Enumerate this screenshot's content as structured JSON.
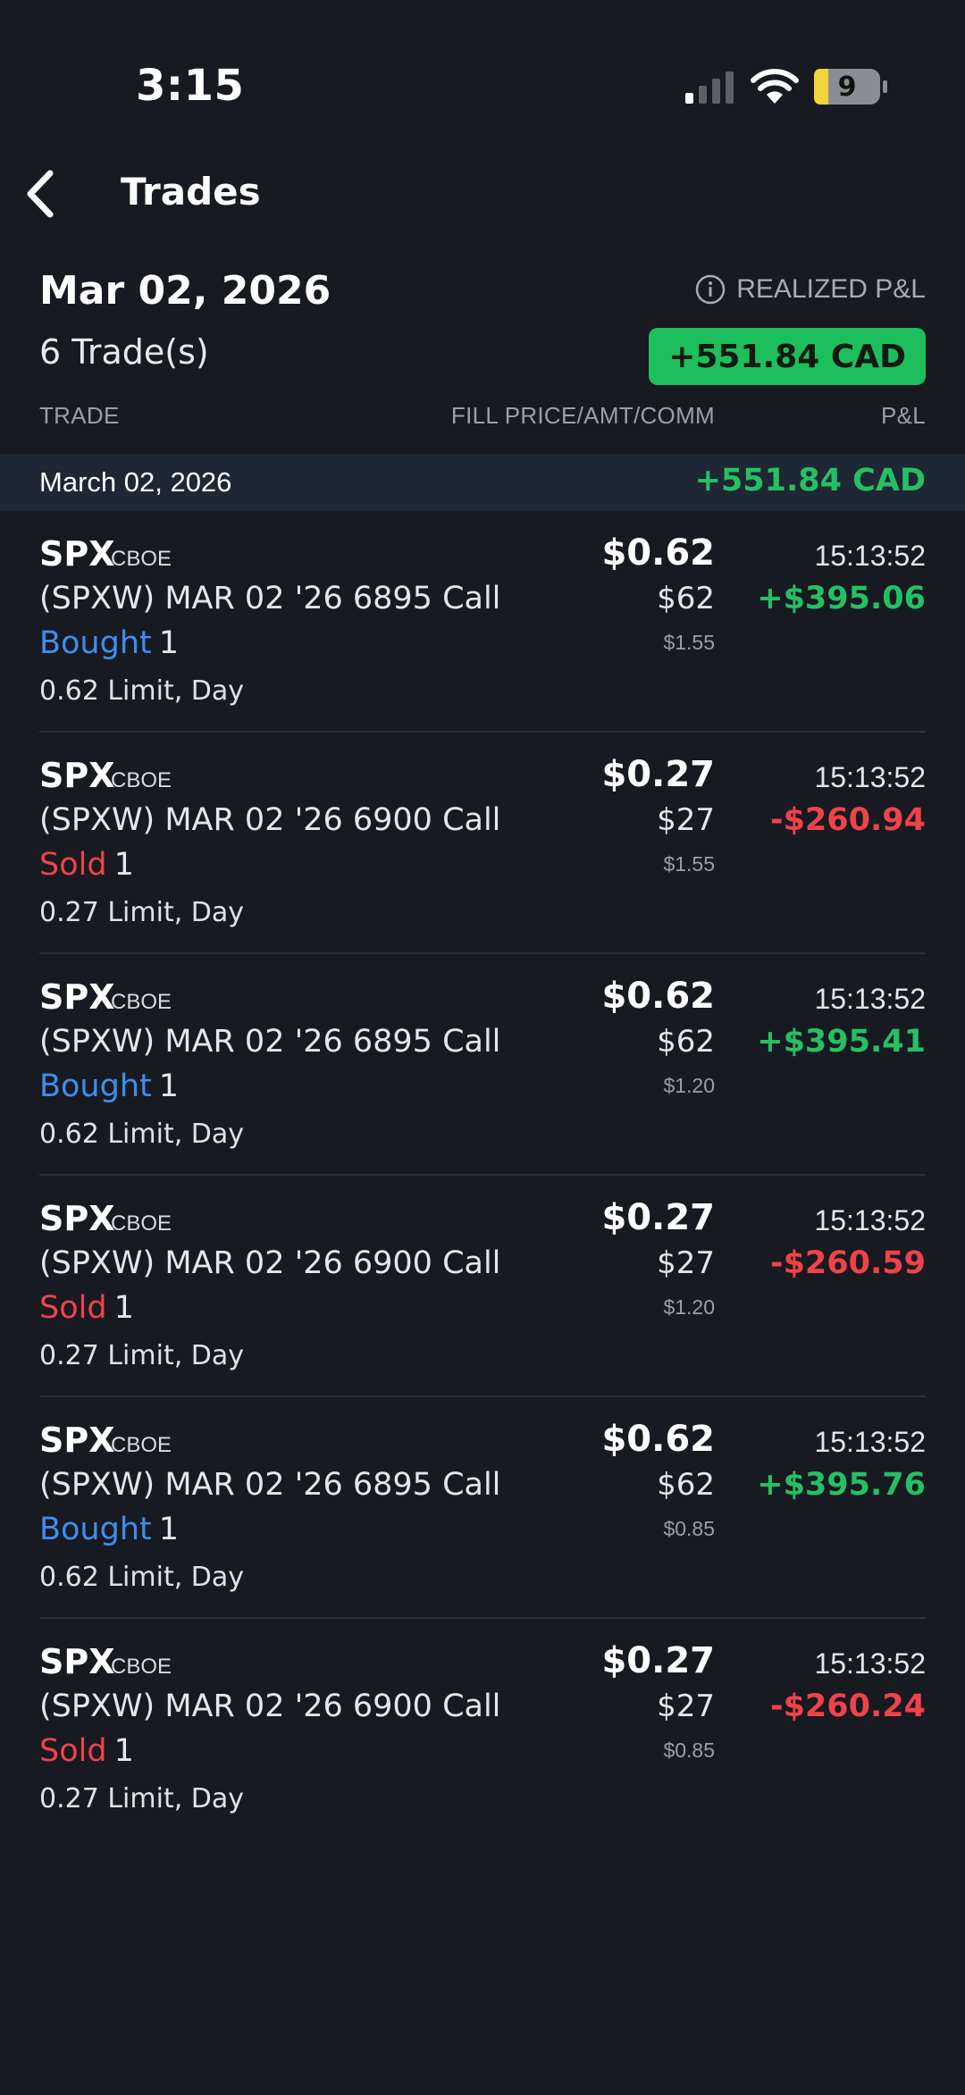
{
  "status_bar": {
    "time": "3:15",
    "battery_level": "9",
    "icons": [
      "signal-icon",
      "wifi-icon",
      "battery-icon"
    ]
  },
  "nav": {
    "title": "Trades",
    "back_icon": "chevron-left-icon"
  },
  "summary": {
    "date": "Mar 02, 2026",
    "trade_count": "6 Trade(s)",
    "pnl_label": "REALIZED P&L",
    "pnl_value": "+551.84 CAD"
  },
  "columns": {
    "trade": "TRADE",
    "fill": "FILL PRICE/AMT/COMM",
    "pnl": "P&L"
  },
  "group": {
    "date": "March 02, 2026",
    "pnl": "+551.84 CAD"
  },
  "colors": {
    "background": "#171a21",
    "positive": "#25c064",
    "negative": "#f0424a",
    "bought": "#3d8ef0",
    "badge": "#1dbe5c"
  },
  "trades": [
    {
      "symbol": "SPX",
      "exchange": "CBOE",
      "contract": "(SPXW) MAR 02 '26 6895 Call",
      "side": "Bought",
      "side_type": "bought",
      "qty": "1",
      "order": "0.62 Limit, Day",
      "fill_price": "$0.62",
      "amount": "$62",
      "commission": "$1.55",
      "time": "15:13:52",
      "pnl": "+$395.06",
      "pnl_type": "pos"
    },
    {
      "symbol": "SPX",
      "exchange": "CBOE",
      "contract": "(SPXW) MAR 02 '26 6900 Call",
      "side": "Sold",
      "side_type": "sold",
      "qty": "1",
      "order": "0.27 Limit, Day",
      "fill_price": "$0.27",
      "amount": "$27",
      "commission": "$1.55",
      "time": "15:13:52",
      "pnl": "-$260.94",
      "pnl_type": "neg"
    },
    {
      "symbol": "SPX",
      "exchange": "CBOE",
      "contract": "(SPXW) MAR 02 '26 6895 Call",
      "side": "Bought",
      "side_type": "bought",
      "qty": "1",
      "order": "0.62 Limit, Day",
      "fill_price": "$0.62",
      "amount": "$62",
      "commission": "$1.20",
      "time": "15:13:52",
      "pnl": "+$395.41",
      "pnl_type": "pos"
    },
    {
      "symbol": "SPX",
      "exchange": "CBOE",
      "contract": "(SPXW) MAR 02 '26 6900 Call",
      "side": "Sold",
      "side_type": "sold",
      "qty": "1",
      "order": "0.27 Limit, Day",
      "fill_price": "$0.27",
      "amount": "$27",
      "commission": "$1.20",
      "time": "15:13:52",
      "pnl": "-$260.59",
      "pnl_type": "neg"
    },
    {
      "symbol": "SPX",
      "exchange": "CBOE",
      "contract": "(SPXW) MAR 02 '26 6895 Call",
      "side": "Bought",
      "side_type": "bought",
      "qty": "1",
      "order": "0.62 Limit, Day",
      "fill_price": "$0.62",
      "amount": "$62",
      "commission": "$0.85",
      "time": "15:13:52",
      "pnl": "+$395.76",
      "pnl_type": "pos"
    },
    {
      "symbol": "SPX",
      "exchange": "CBOE",
      "contract": "(SPXW) MAR 02 '26 6900 Call",
      "side": "Sold",
      "side_type": "sold",
      "qty": "1",
      "order": "0.27 Limit, Day",
      "fill_price": "$0.27",
      "amount": "$27",
      "commission": "$0.85",
      "time": "15:13:52",
      "pnl": "-$260.24",
      "pnl_type": "neg"
    }
  ]
}
